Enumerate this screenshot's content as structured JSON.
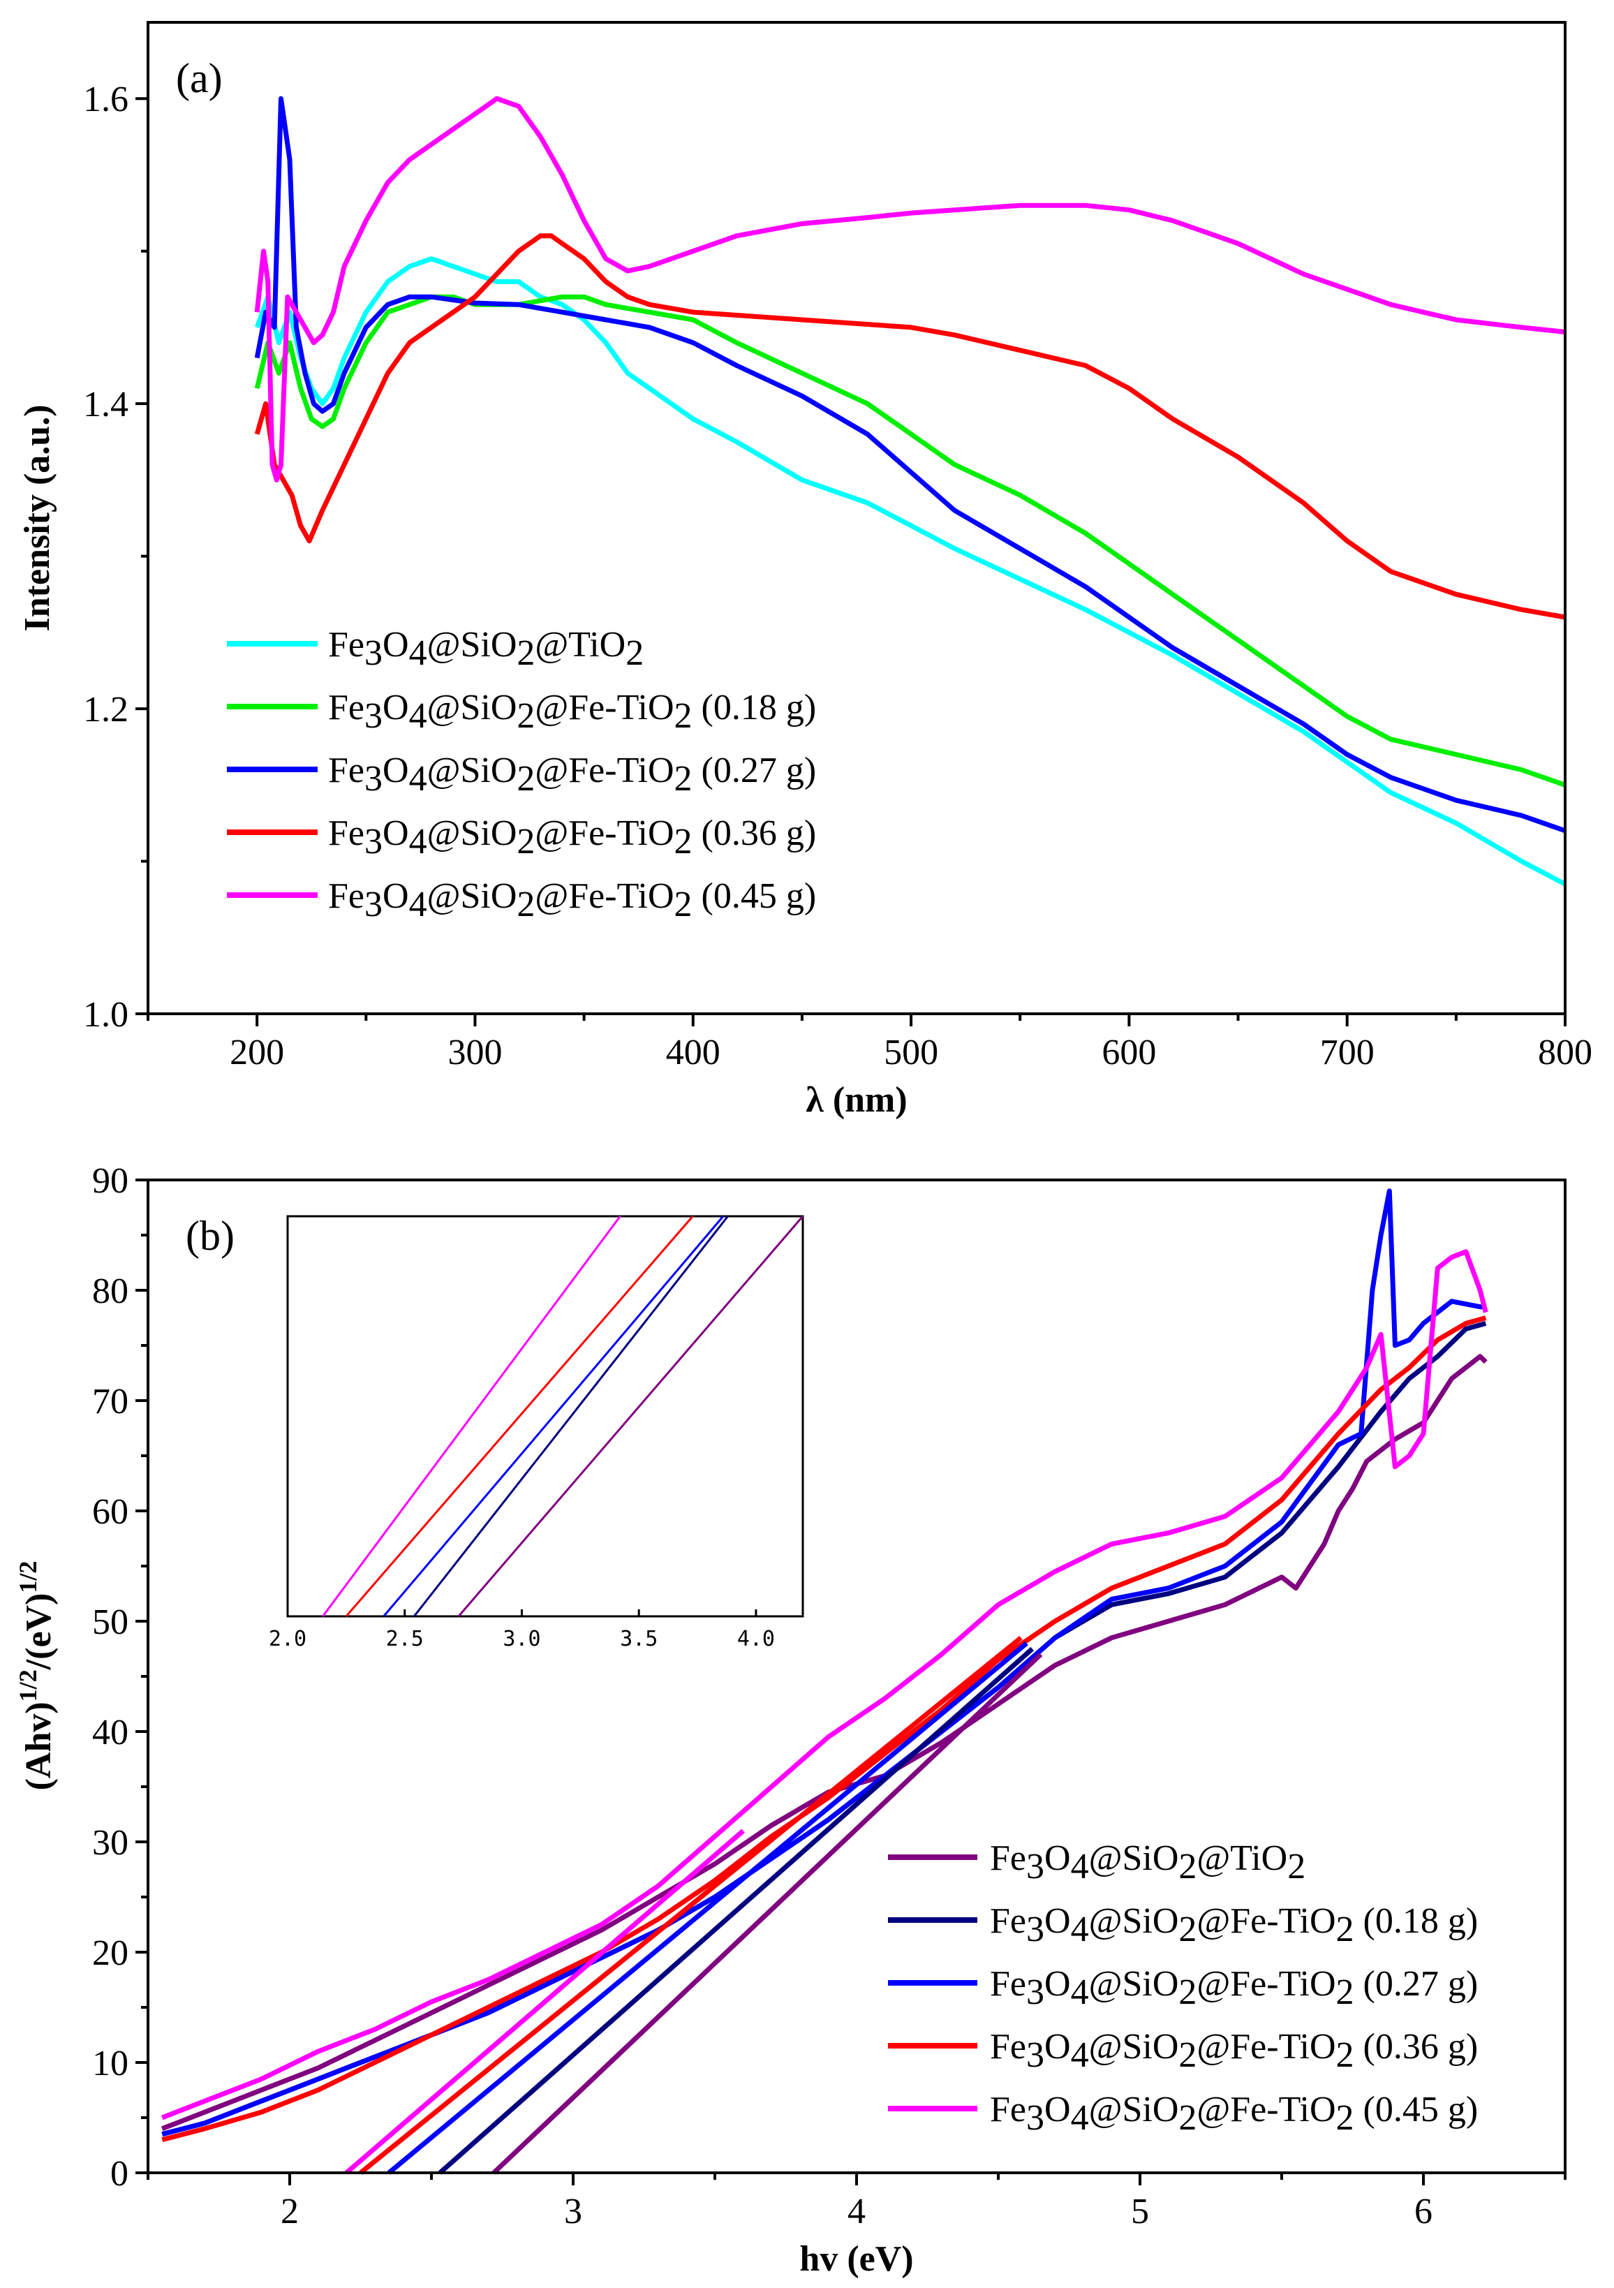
{
  "chart_data": [
    {
      "id": "a",
      "type": "line",
      "panel_label": "(a)",
      "xlabel": "λ (nm)",
      "ylabel": "Intensity (a.u.)",
      "xlim": [
        150,
        800
      ],
      "ylim": [
        1.0,
        1.65
      ],
      "xticks": [
        200,
        300,
        400,
        500,
        600,
        700,
        800
      ],
      "yticks": [
        1.0,
        1.2,
        1.4,
        1.6
      ],
      "ytick_labels": [
        "1.0",
        "1.2",
        "1.4",
        "1.6"
      ],
      "legend_position": "lower-left",
      "series": [
        {
          "name_parts": [
            "Fe",
            "3",
            "O",
            "4",
            "@SiO",
            "2",
            "@TiO",
            "2",
            ""
          ],
          "color": "#00ffff",
          "x": [
            200,
            205,
            210,
            215,
            220,
            225,
            230,
            235,
            240,
            250,
            260,
            270,
            280,
            290,
            300,
            310,
            320,
            330,
            340,
            350,
            360,
            370,
            380,
            400,
            420,
            450,
            480,
            500,
            520,
            550,
            580,
            600,
            620,
            650,
            680,
            700,
            720,
            750,
            780,
            800
          ],
          "y": [
            1.45,
            1.47,
            1.44,
            1.46,
            1.43,
            1.41,
            1.4,
            1.41,
            1.43,
            1.46,
            1.48,
            1.49,
            1.495,
            1.49,
            1.485,
            1.48,
            1.48,
            1.47,
            1.465,
            1.455,
            1.44,
            1.42,
            1.41,
            1.39,
            1.375,
            1.35,
            1.335,
            1.32,
            1.305,
            1.285,
            1.265,
            1.25,
            1.235,
            1.21,
            1.185,
            1.165,
            1.145,
            1.125,
            1.1,
            1.085
          ]
        },
        {
          "name_parts": [
            "Fe",
            "3",
            "O",
            "4",
            "@SiO",
            "2",
            "@Fe-TiO",
            "2",
            " (0.18 g)"
          ],
          "color": "#00ee00",
          "x": [
            200,
            205,
            210,
            215,
            220,
            225,
            230,
            235,
            240,
            250,
            260,
            270,
            280,
            290,
            300,
            320,
            340,
            350,
            360,
            380,
            400,
            420,
            450,
            480,
            500,
            520,
            550,
            580,
            600,
            620,
            650,
            680,
            700,
            720,
            750,
            780,
            800
          ],
          "y": [
            1.41,
            1.44,
            1.42,
            1.44,
            1.41,
            1.39,
            1.385,
            1.39,
            1.41,
            1.44,
            1.46,
            1.465,
            1.47,
            1.47,
            1.465,
            1.465,
            1.47,
            1.47,
            1.465,
            1.46,
            1.455,
            1.44,
            1.42,
            1.4,
            1.38,
            1.36,
            1.34,
            1.315,
            1.295,
            1.275,
            1.245,
            1.215,
            1.195,
            1.18,
            1.17,
            1.16,
            1.15
          ]
        },
        {
          "name_parts": [
            "Fe",
            "3",
            "O",
            "4",
            "@SiO",
            "2",
            "@Fe-TiO",
            "2",
            " (0.27 g)"
          ],
          "color": "#0000ff",
          "x": [
            200,
            204,
            208,
            211,
            213,
            215,
            218,
            222,
            226,
            230,
            235,
            240,
            250,
            260,
            270,
            280,
            290,
            300,
            320,
            340,
            360,
            380,
            400,
            420,
            450,
            480,
            500,
            520,
            550,
            580,
            600,
            620,
            650,
            680,
            700,
            720,
            750,
            780,
            800
          ],
          "y": [
            1.43,
            1.46,
            1.45,
            1.6,
            1.58,
            1.56,
            1.45,
            1.42,
            1.4,
            1.395,
            1.4,
            1.42,
            1.45,
            1.465,
            1.47,
            1.47,
            1.468,
            1.466,
            1.465,
            1.46,
            1.455,
            1.45,
            1.44,
            1.425,
            1.405,
            1.38,
            1.355,
            1.33,
            1.305,
            1.28,
            1.26,
            1.24,
            1.215,
            1.19,
            1.17,
            1.155,
            1.14,
            1.13,
            1.12
          ]
        },
        {
          "name_parts": [
            "Fe",
            "3",
            "O",
            "4",
            "@SiO",
            "2",
            "@Fe-TiO",
            "2",
            " (0.36 g)"
          ],
          "color": "#ff0000",
          "x": [
            200,
            204,
            208,
            212,
            216,
            220,
            224,
            230,
            240,
            250,
            260,
            270,
            280,
            290,
            300,
            310,
            320,
            330,
            335,
            340,
            350,
            360,
            370,
            380,
            400,
            450,
            500,
            520,
            550,
            580,
            600,
            620,
            650,
            680,
            700,
            720,
            750,
            780,
            800
          ],
          "y": [
            1.38,
            1.4,
            1.36,
            1.35,
            1.34,
            1.32,
            1.31,
            1.33,
            1.36,
            1.39,
            1.42,
            1.44,
            1.45,
            1.46,
            1.47,
            1.485,
            1.5,
            1.51,
            1.51,
            1.505,
            1.495,
            1.48,
            1.47,
            1.465,
            1.46,
            1.455,
            1.45,
            1.445,
            1.435,
            1.425,
            1.41,
            1.39,
            1.365,
            1.335,
            1.31,
            1.29,
            1.275,
            1.265,
            1.26
          ]
        },
        {
          "name_parts": [
            "Fe",
            "3",
            "O",
            "4",
            "@SiO",
            "2",
            "@Fe-TiO",
            "2",
            " (0.45 g)"
          ],
          "color": "#ff00ff",
          "x": [
            200,
            203,
            205,
            207,
            209,
            211,
            214,
            218,
            222,
            226,
            230,
            235,
            240,
            250,
            260,
            270,
            280,
            290,
            300,
            310,
            320,
            330,
            340,
            350,
            360,
            370,
            380,
            400,
            420,
            450,
            480,
            500,
            520,
            550,
            580,
            600,
            620,
            650,
            680,
            700,
            720,
            750,
            780,
            800
          ],
          "y": [
            1.46,
            1.5,
            1.48,
            1.36,
            1.35,
            1.36,
            1.47,
            1.46,
            1.45,
            1.44,
            1.445,
            1.46,
            1.49,
            1.52,
            1.545,
            1.56,
            1.57,
            1.58,
            1.59,
            1.6,
            1.595,
            1.575,
            1.55,
            1.52,
            1.495,
            1.487,
            1.49,
            1.5,
            1.51,
            1.518,
            1.522,
            1.525,
            1.527,
            1.53,
            1.53,
            1.527,
            1.52,
            1.505,
            1.485,
            1.475,
            1.465,
            1.455,
            1.45,
            1.447
          ]
        }
      ]
    },
    {
      "id": "b",
      "type": "line",
      "panel_label": "(b)",
      "xlabel": "hv (eV)",
      "ylabel_parts": [
        "(Ahv)",
        "1/2",
        "/(eV)",
        "1/2"
      ],
      "xlim": [
        1.5,
        6.5
      ],
      "ylim": [
        0,
        90
      ],
      "xticks": [
        2,
        3,
        4,
        5,
        6
      ],
      "yticks": [
        0,
        10,
        20,
        30,
        40,
        50,
        60,
        70,
        80,
        90
      ],
      "legend_position": "lower-right",
      "series": [
        {
          "name_parts": [
            "Fe",
            "3",
            "O",
            "4",
            "@SiO",
            "2",
            "@TiO",
            "2",
            ""
          ],
          "color": "#800080",
          "x": [
            1.55,
            1.7,
            1.9,
            2.1,
            2.3,
            2.5,
            2.7,
            2.9,
            3.1,
            3.3,
            3.5,
            3.7,
            3.9,
            4.1,
            4.3,
            4.5,
            4.7,
            4.9,
            5.1,
            5.3,
            5.5,
            5.55,
            5.6,
            5.65,
            5.7,
            5.75,
            5.8,
            5.9,
            6.0,
            6.1,
            6.2,
            6.22
          ],
          "y": [
            4,
            5.5,
            7.5,
            9.5,
            12,
            14.5,
            17,
            19.5,
            22,
            25,
            28,
            31.5,
            34.5,
            36,
            39,
            42.5,
            46,
            48.5,
            50,
            51.5,
            54,
            53,
            55,
            57,
            60,
            62,
            64.5,
            66.5,
            68,
            72,
            74,
            73.5
          ]
        },
        {
          "name_parts": [
            "Fe",
            "3",
            "O",
            "4",
            "@SiO",
            "2",
            "@Fe-TiO",
            "2",
            " (0.18 g)"
          ],
          "color": "#000080",
          "x": [
            1.55,
            1.7,
            1.9,
            2.1,
            2.3,
            2.5,
            2.7,
            2.9,
            3.1,
            3.3,
            3.5,
            3.7,
            3.9,
            4.1,
            4.3,
            4.5,
            4.7,
            4.9,
            5.1,
            5.3,
            5.5,
            5.7,
            5.85,
            5.95,
            6.05,
            6.15,
            6.22
          ],
          "y": [
            3.5,
            4.5,
            6.5,
            8.5,
            10.5,
            12.5,
            14.5,
            17,
            19.5,
            22,
            25,
            28.5,
            32,
            36,
            40,
            44,
            48.5,
            51.5,
            52.5,
            54,
            58,
            64,
            69,
            72,
            74,
            76.5,
            77
          ]
        },
        {
          "name_parts": [
            "Fe",
            "3",
            "O",
            "4",
            "@SiO",
            "2",
            "@Fe-TiO",
            "2",
            " (0.27 g)"
          ],
          "color": "#0000ff",
          "x": [
            1.55,
            1.7,
            1.9,
            2.1,
            2.3,
            2.5,
            2.7,
            2.9,
            3.1,
            3.3,
            3.5,
            3.7,
            3.9,
            4.1,
            4.3,
            4.5,
            4.7,
            4.9,
            5.1,
            5.3,
            5.5,
            5.7,
            5.78,
            5.82,
            5.85,
            5.88,
            5.9,
            5.95,
            6.0,
            6.1,
            6.2,
            6.22
          ],
          "y": [
            3.5,
            4.5,
            6.5,
            8.5,
            10.5,
            12.5,
            14.5,
            17,
            19.5,
            22,
            25,
            28.5,
            32,
            36,
            40,
            44,
            48.5,
            52,
            53,
            55,
            59,
            66,
            67,
            80,
            85,
            89,
            75,
            75.5,
            77,
            79,
            78.5,
            78.5
          ]
        },
        {
          "name_parts": [
            "Fe",
            "3",
            "O",
            "4",
            "@SiO",
            "2",
            "@Fe-TiO",
            "2",
            " (0.36 g)"
          ],
          "color": "#ff0000",
          "x": [
            1.55,
            1.7,
            1.9,
            2.1,
            2.3,
            2.5,
            2.7,
            2.9,
            3.1,
            3.3,
            3.5,
            3.7,
            3.9,
            4.1,
            4.3,
            4.5,
            4.7,
            4.9,
            5.1,
            5.3,
            5.5,
            5.7,
            5.85,
            5.95,
            6.05,
            6.15,
            6.22
          ],
          "y": [
            3,
            4,
            5.5,
            7.5,
            10,
            12.5,
            15,
            17.5,
            20,
            23,
            26.5,
            30.5,
            34,
            38,
            42,
            46.5,
            50,
            53,
            55,
            57,
            61,
            67,
            71,
            73,
            75.5,
            77,
            77.5
          ]
        },
        {
          "name_parts": [
            "Fe",
            "3",
            "O",
            "4",
            "@SiO",
            "2",
            "@Fe-TiO",
            "2",
            " (0.45 g)"
          ],
          "color": "#ff00ff",
          "x": [
            1.55,
            1.7,
            1.9,
            2.1,
            2.3,
            2.5,
            2.7,
            2.9,
            3.1,
            3.3,
            3.5,
            3.7,
            3.9,
            4.1,
            4.3,
            4.5,
            4.7,
            4.9,
            5.1,
            5.3,
            5.5,
            5.7,
            5.8,
            5.85,
            5.9,
            5.95,
            6.0,
            6.05,
            6.1,
            6.15,
            6.2,
            6.22
          ],
          "y": [
            5,
            6.5,
            8.5,
            11,
            13,
            15.5,
            17.5,
            20,
            22.5,
            26,
            30.5,
            35,
            39.5,
            43,
            47,
            51.5,
            54.5,
            57,
            58,
            59.5,
            63,
            69,
            73,
            76,
            64,
            65,
            67,
            82,
            83,
            83.5,
            80,
            78
          ]
        }
      ],
      "tangent_lines": [
        {
          "color": "#800080",
          "x0": 2.72,
          "x1": 4.65,
          "y1": 47
        },
        {
          "color": "#000080",
          "x0": 2.53,
          "x1": 4.62,
          "y1": 47.5
        },
        {
          "color": "#0000ff",
          "x0": 2.35,
          "x1": 4.6,
          "y1": 48
        },
        {
          "color": "#ff0000",
          "x0": 2.25,
          "x1": 4.58,
          "y1": 48.5
        },
        {
          "color": "#ff00ff",
          "x0": 2.2,
          "x1": 3.6,
          "y1": 31
        }
      ],
      "inset": {
        "xlim": [
          2.0,
          4.2
        ],
        "xticks": [
          2.0,
          2.5,
          3.0,
          3.5,
          4.0
        ],
        "xtick_labels": [
          "2.0",
          "2.5",
          "3.0",
          "3.5",
          "4.0"
        ],
        "lines": [
          {
            "color": "#ff00ff",
            "x0": 2.15,
            "x1": 3.42
          },
          {
            "color": "#ff0000",
            "x0": 2.25,
            "x1": 3.73
          },
          {
            "color": "#0000ff",
            "x0": 2.41,
            "x1": 3.86
          },
          {
            "color": "#000080",
            "x0": 2.54,
            "x1": 3.88
          },
          {
            "color": "#800080",
            "x0": 2.73,
            "x1": 4.2
          }
        ]
      }
    }
  ]
}
